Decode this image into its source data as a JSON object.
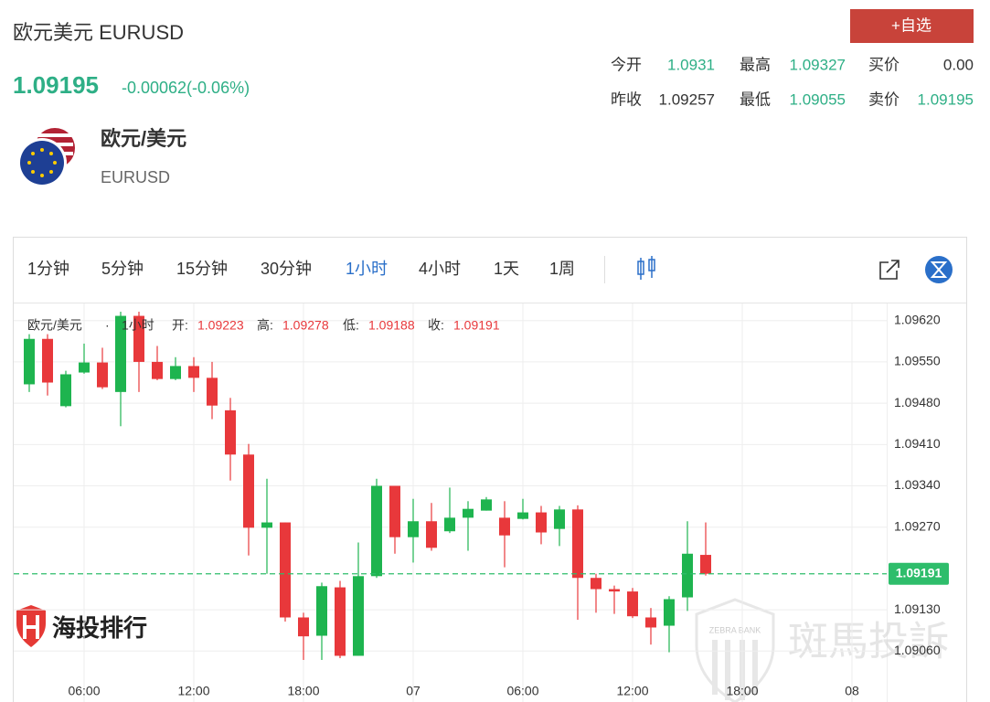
{
  "header": {
    "title": "欧元美元 EURUSD",
    "price": "1.09195",
    "change": "-0.00062(-0.06%)",
    "watch_button": "+自选"
  },
  "quote": [
    {
      "label": "今开",
      "value": "1.0931",
      "color": "#2eaf86"
    },
    {
      "label": "最高",
      "value": "1.09327",
      "color": "#2eaf86"
    },
    {
      "label": "买价",
      "value": "0.00",
      "color": "#333333"
    },
    {
      "label": "昨收",
      "value": "1.09257",
      "color": "#333333"
    },
    {
      "label": "最低",
      "value": "1.09055",
      "color": "#2eaf86"
    },
    {
      "label": "卖价",
      "value": "1.09195",
      "color": "#2eaf86"
    }
  ],
  "instrument": {
    "name": "欧元/美元",
    "code": "EURUSD"
  },
  "toolbar": {
    "intervals": [
      "1分钟",
      "5分钟",
      "15分钟",
      "30分钟",
      "1小时",
      "4小时",
      "1天",
      "1周"
    ],
    "active": 4
  },
  "watermarks": {
    "left": "海投排行",
    "right": "斑馬投訴",
    "right_badge": "ZEBRA BANK"
  },
  "chart_data": {
    "type": "candlestick",
    "legend": {
      "symbol": "欧元/美元",
      "interval": "1小时",
      "open_label": "开:",
      "high_label": "高:",
      "low_label": "低:",
      "close_label": "收:"
    },
    "x": [
      0,
      1,
      2,
      3,
      4,
      5,
      6,
      7,
      8,
      9,
      10,
      11,
      12,
      13,
      14,
      15,
      16,
      17,
      18,
      19,
      20,
      21,
      22,
      23,
      24,
      25,
      26,
      27,
      28,
      29,
      30,
      31,
      32,
      33,
      34,
      35,
      36,
      37
    ],
    "open": [
      1.09512,
      1.09589,
      1.09475,
      1.09532,
      1.09549,
      1.09499,
      1.09628,
      1.0955,
      1.09521,
      1.09543,
      1.09523,
      1.09468,
      1.09393,
      1.09269,
      1.09278,
      1.09117,
      1.09086,
      1.09168,
      1.09052,
      1.09187,
      1.0934,
      1.09253,
      1.0928,
      1.09263,
      1.09286,
      1.09298,
      1.09286,
      1.09284,
      1.09295,
      1.09267,
      1.093,
      1.09184,
      1.09165,
      1.09161,
      1.09117,
      1.09103,
      1.09151,
      1.09223
    ],
    "high": [
      1.09597,
      1.09597,
      1.09535,
      1.09581,
      1.09574,
      1.09635,
      1.09635,
      1.09577,
      1.09558,
      1.09558,
      1.0955,
      1.09489,
      1.09411,
      1.09352,
      1.09278,
      1.09125,
      1.09176,
      1.09179,
      1.09244,
      1.09352,
      1.0934,
      1.09318,
      1.09311,
      1.09337,
      1.09314,
      1.09321,
      1.09314,
      1.09318,
      1.09306,
      1.09306,
      1.09307,
      1.09191,
      1.09171,
      1.09167,
      1.09133,
      1.09153,
      1.0928,
      1.09278
    ],
    "low": [
      1.09499,
      1.09493,
      1.09473,
      1.0953,
      1.09504,
      1.09441,
      1.09499,
      1.09519,
      1.09519,
      1.09499,
      1.09453,
      1.09349,
      1.09222,
      1.09191,
      1.0911,
      1.09045,
      1.09045,
      1.09048,
      1.09052,
      1.09184,
      1.09225,
      1.0921,
      1.0923,
      1.0926,
      1.0923,
      1.09298,
      1.09202,
      1.09283,
      1.09241,
      1.09238,
      1.09113,
      1.09125,
      1.09123,
      1.09116,
      1.09071,
      1.09058,
      1.09128,
      1.09188
    ],
    "close": [
      1.09589,
      1.09515,
      1.09529,
      1.09549,
      1.09507,
      1.09628,
      1.0955,
      1.09521,
      1.09543,
      1.09523,
      1.09476,
      1.09393,
      1.09269,
      1.09278,
      1.09117,
      1.09085,
      1.0917,
      1.09052,
      1.09187,
      1.0934,
      1.09253,
      1.0928,
      1.09235,
      1.09286,
      1.09301,
      1.09317,
      1.09256,
      1.09295,
      1.09261,
      1.093,
      1.09184,
      1.09165,
      1.09161,
      1.09119,
      1.091,
      1.09148,
      1.09225,
      1.09191
    ],
    "up_color": "#1eb44f",
    "down_color": "#e8383b",
    "price_line_color": "#2ebd6b",
    "xlim": [
      -0.85,
      46.9
    ],
    "xticks": [
      {
        "value": 3,
        "label": "06:00"
      },
      {
        "value": 9,
        "label": "12:00"
      },
      {
        "value": 15,
        "label": "18:00"
      },
      {
        "value": 21,
        "label": "07"
      },
      {
        "value": 27,
        "label": "06:00"
      },
      {
        "value": 33,
        "label": "12:00"
      },
      {
        "value": 39,
        "label": "18:00"
      },
      {
        "value": 45,
        "label": "08"
      }
    ],
    "ylim": [
      1.09014,
      1.09649
    ],
    "yticks": [
      {
        "value": 1.0962,
        "label": "1.09620"
      },
      {
        "value": 1.0955,
        "label": "1.09550"
      },
      {
        "value": 1.0948,
        "label": "1.09480"
      },
      {
        "value": 1.0941,
        "label": "1.09410"
      },
      {
        "value": 1.0934,
        "label": "1.09340"
      },
      {
        "value": 1.0927,
        "label": "1.09270"
      },
      {
        "value": 1.0913,
        "label": "1.09130"
      },
      {
        "value": 1.0906,
        "label": "1.09060"
      }
    ],
    "grid": true
  }
}
